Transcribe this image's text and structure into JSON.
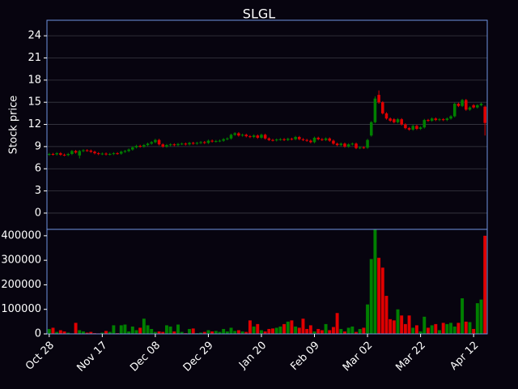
{
  "chart_data": {
    "type": "candlestick",
    "title": "SLGL",
    "ylabel": "Stock price",
    "categories": [
      "Oct 28",
      null,
      null,
      null,
      null,
      null,
      null,
      null,
      null,
      null,
      null,
      null,
      null,
      null,
      "Nov 17",
      null,
      null,
      null,
      null,
      null,
      null,
      null,
      null,
      null,
      null,
      null,
      null,
      null,
      "Dec 08",
      null,
      null,
      null,
      null,
      null,
      null,
      null,
      null,
      null,
      null,
      null,
      null,
      null,
      "Dec 29",
      null,
      null,
      null,
      null,
      null,
      null,
      null,
      null,
      null,
      null,
      null,
      null,
      null,
      "Jan 20",
      null,
      null,
      null,
      null,
      null,
      null,
      null,
      null,
      null,
      null,
      null,
      null,
      null,
      "Feb 09",
      null,
      null,
      null,
      null,
      null,
      null,
      null,
      null,
      null,
      null,
      null,
      null,
      null,
      "Mar 02",
      null,
      null,
      null,
      null,
      null,
      null,
      null,
      null,
      null,
      null,
      null,
      null,
      null,
      "Mar 22",
      null,
      null,
      null,
      null,
      null,
      null,
      null,
      null,
      null,
      null,
      null,
      null,
      null,
      "Apr 12",
      null,
      null,
      null
    ],
    "open": [
      7.9,
      8.0,
      7.95,
      8.1,
      7.9,
      7.85,
      8.0,
      8.4,
      7.8,
      8.4,
      8.5,
      8.45,
      8.3,
      8.1,
      8.0,
      8.05,
      7.95,
      8.0,
      8.1,
      8.05,
      8.3,
      8.4,
      8.6,
      8.9,
      9.1,
      9.0,
      9.2,
      9.4,
      9.6,
      9.9,
      9.3,
      9.0,
      9.2,
      9.3,
      9.2,
      9.35,
      9.4,
      9.3,
      9.5,
      9.4,
      9.5,
      9.6,
      9.5,
      9.8,
      9.7,
      9.75,
      9.8,
      10.0,
      10.1,
      10.6,
      10.8,
      10.5,
      10.6,
      10.4,
      10.3,
      10.5,
      10.2,
      10.6,
      10.1,
      9.9,
      9.85,
      9.95,
      10.0,
      9.9,
      10.05,
      10.0,
      10.3,
      10.0,
      9.9,
      9.8,
      9.6,
      10.2,
      10.0,
      9.9,
      10.1,
      9.8,
      9.4,
      9.2,
      9.4,
      9.0,
      9.3,
      9.4,
      8.8,
      8.9,
      8.85,
      10.5,
      12.3,
      16.0,
      15.0,
      13.5,
      12.8,
      12.7,
      12.3,
      12.7,
      12.0,
      11.5,
      11.3,
      11.8,
      11.4,
      11.6,
      12.6,
      12.5,
      12.8,
      12.6,
      12.7,
      12.6,
      12.8,
      13.1,
      14.8,
      14.5,
      15.3,
      14.0,
      14.6,
      14.3,
      14.6,
      14.4
    ],
    "high": [
      8.15,
      8.15,
      8.25,
      8.25,
      8.05,
      8.15,
      8.55,
      8.55,
      8.55,
      8.65,
      8.65,
      8.6,
      8.45,
      8.25,
      8.2,
      8.2,
      8.15,
      8.25,
      8.25,
      8.45,
      8.55,
      8.75,
      9.05,
      9.25,
      9.25,
      9.35,
      9.55,
      9.75,
      10.05,
      10.05,
      9.45,
      9.35,
      9.45,
      9.45,
      9.5,
      9.55,
      9.55,
      9.65,
      9.65,
      9.65,
      9.75,
      9.75,
      9.95,
      9.95,
      9.9,
      9.95,
      10.15,
      10.25,
      10.75,
      10.95,
      10.95,
      10.75,
      10.75,
      10.55,
      10.65,
      10.65,
      10.75,
      10.75,
      10.25,
      10.05,
      10.1,
      10.15,
      10.15,
      10.2,
      10.2,
      10.45,
      10.45,
      10.15,
      10.05,
      9.95,
      10.35,
      10.35,
      10.15,
      10.25,
      10.25,
      9.95,
      9.55,
      9.55,
      9.55,
      9.45,
      9.55,
      9.55,
      9.05,
      9.05,
      10.05,
      12.45,
      15.8,
      16.6,
      15.15,
      13.65,
      12.95,
      12.85,
      12.85,
      12.85,
      12.15,
      11.65,
      11.95,
      11.95,
      11.75,
      12.75,
      12.75,
      12.95,
      12.95,
      12.85,
      12.85,
      12.95,
      13.25,
      14.95,
      14.95,
      15.45,
      15.45,
      14.45,
      14.75,
      14.75,
      14.95,
      14.55
    ],
    "low": [
      7.75,
      7.8,
      7.8,
      7.75,
      7.7,
      7.7,
      7.85,
      8.05,
      7.4,
      8.25,
      8.3,
      8.15,
      7.95,
      7.85,
      7.85,
      7.8,
      7.8,
      7.85,
      7.9,
      7.9,
      8.15,
      8.25,
      8.45,
      8.75,
      8.85,
      8.85,
      9.05,
      9.25,
      9.45,
      9.15,
      8.85,
      8.85,
      9.05,
      9.05,
      9.05,
      9.2,
      9.15,
      9.15,
      9.25,
      9.25,
      9.35,
      9.35,
      9.35,
      9.55,
      9.55,
      9.6,
      9.65,
      9.85,
      9.95,
      10.45,
      10.35,
      10.35,
      10.25,
      10.15,
      10.15,
      10.05,
      10.05,
      9.95,
      9.75,
      9.7,
      9.7,
      9.8,
      9.75,
      9.75,
      9.85,
      9.85,
      9.85,
      9.75,
      9.65,
      9.45,
      9.45,
      9.85,
      9.75,
      9.75,
      9.65,
      9.25,
      9.05,
      9.05,
      8.85,
      8.85,
      9.15,
      8.65,
      8.65,
      8.7,
      8.7,
      10.35,
      12.15,
      14.8,
      13.35,
      12.65,
      12.35,
      12.15,
      12.15,
      11.85,
      11.35,
      11.15,
      11.15,
      11.25,
      11.25,
      11.45,
      12.35,
      12.35,
      12.45,
      12.45,
      12.45,
      12.45,
      12.65,
      12.95,
      14.35,
      14.35,
      13.85,
      13.85,
      14.15,
      14.15,
      14.45,
      10.5
    ],
    "close": [
      8.0,
      7.95,
      8.1,
      7.9,
      7.85,
      8.0,
      8.4,
      8.2,
      8.4,
      8.5,
      8.45,
      8.3,
      8.1,
      8.0,
      8.05,
      7.95,
      8.0,
      8.1,
      8.05,
      8.3,
      8.4,
      8.6,
      8.9,
      9.1,
      9.0,
      9.2,
      9.4,
      9.6,
      9.9,
      9.3,
      9.0,
      9.2,
      9.3,
      9.2,
      9.35,
      9.4,
      9.3,
      9.5,
      9.4,
      9.5,
      9.6,
      9.5,
      9.8,
      9.7,
      9.75,
      9.8,
      10.0,
      10.1,
      10.6,
      10.8,
      10.5,
      10.6,
      10.4,
      10.3,
      10.5,
      10.2,
      10.6,
      10.1,
      9.9,
      9.85,
      9.95,
      10.0,
      9.9,
      10.05,
      10.0,
      10.3,
      10.0,
      9.9,
      9.8,
      9.6,
      10.2,
      10.0,
      9.9,
      10.1,
      9.8,
      9.4,
      9.2,
      9.4,
      9.0,
      9.3,
      9.4,
      8.8,
      8.9,
      8.85,
      9.9,
      12.3,
      15.5,
      15.0,
      13.5,
      12.8,
      12.5,
      12.3,
      12.7,
      12.0,
      11.5,
      11.3,
      11.8,
      11.4,
      11.6,
      12.6,
      12.5,
      12.8,
      12.6,
      12.7,
      12.6,
      12.8,
      13.1,
      14.8,
      14.5,
      15.3,
      14.0,
      14.3,
      14.3,
      14.6,
      14.8,
      12.2
    ],
    "volume": [
      20000,
      25000,
      8000,
      15000,
      10000,
      5000,
      2000,
      45000,
      15000,
      10000,
      5000,
      8000,
      3000,
      2000,
      5000,
      12000,
      8000,
      35000,
      3000,
      35000,
      38000,
      10000,
      30000,
      15000,
      25000,
      62000,
      35000,
      20000,
      8000,
      10000,
      8000,
      35000,
      30000,
      10000,
      38000,
      8000,
      3000,
      20000,
      22000,
      3000,
      5000,
      8000,
      15000,
      10000,
      12000,
      8000,
      20000,
      10000,
      25000,
      12000,
      15000,
      10000,
      8000,
      55000,
      30000,
      40000,
      15000,
      10000,
      20000,
      22000,
      25000,
      30000,
      40000,
      50000,
      55000,
      30000,
      25000,
      62000,
      20000,
      35000,
      10000,
      20000,
      15000,
      40000,
      15000,
      28000,
      85000,
      20000,
      10000,
      25000,
      30000,
      8000,
      20000,
      25000,
      120000,
      305000,
      425000,
      310000,
      270000,
      155000,
      60000,
      55000,
      100000,
      75000,
      40000,
      75000,
      25000,
      35000,
      10000,
      70000,
      25000,
      35000,
      40000,
      15000,
      45000,
      40000,
      45000,
      30000,
      45000,
      145000,
      50000,
      48000,
      20000,
      125000,
      140000,
      400000
    ],
    "ylim": [
      -2.2,
      26.1
    ],
    "yticks": [
      0,
      3,
      6,
      9,
      12,
      15,
      18,
      21,
      24
    ],
    "volume_ylim": [
      0,
      426000
    ],
    "volume_yticks": [
      0,
      100000,
      200000,
      300000,
      400000
    ],
    "up_color": "#008000",
    "down_color": "#e00000",
    "grid": true
  }
}
